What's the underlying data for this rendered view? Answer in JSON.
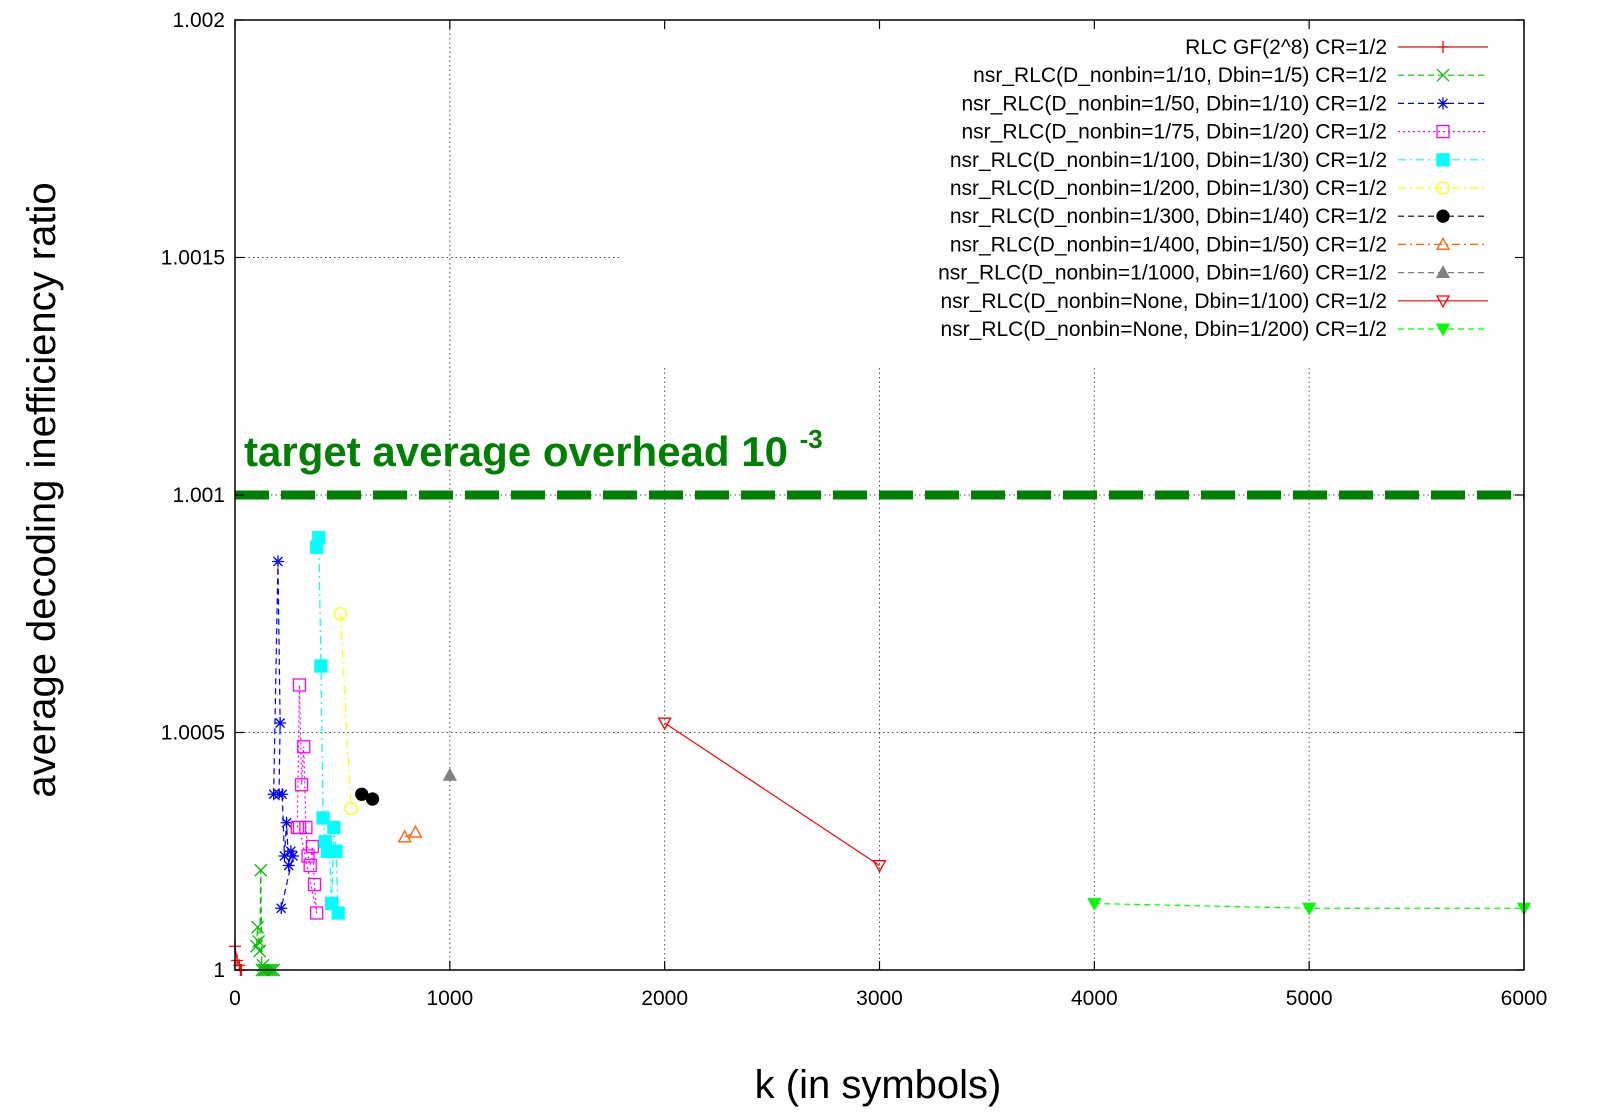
{
  "chart_data": {
    "type": "line",
    "title": "",
    "xlabel": "k (in symbols)",
    "ylabel": "average decoding inefficiency ratio",
    "xlim": [
      0,
      6000
    ],
    "ylim": [
      1,
      1.002
    ],
    "xticks": [
      0,
      1000,
      2000,
      3000,
      4000,
      5000,
      6000
    ],
    "yticks": [
      1,
      1.0005,
      1.001,
      1.0015,
      1.002
    ],
    "xtick_labels": [
      "0",
      "1000",
      "2000",
      "3000",
      "4000",
      "5000",
      "6000"
    ],
    "ytick_labels": [
      "1",
      "1.0005",
      "1.001",
      "1.0015",
      "1.002"
    ],
    "grid": true,
    "legend_position": "top-right",
    "target_line": {
      "y": 1.001,
      "color": "#008000",
      "label_main": "target average overhead 10",
      "label_sup": "-3"
    },
    "series": [
      {
        "name": "RLC GF(2^8) CR=1/2",
        "color": "#ff0000",
        "marker": "plus",
        "dash": "solid",
        "x": [
          0,
          10,
          20,
          25,
          30
        ],
        "y": [
          1.00005,
          1.00002,
          1.00001,
          1.0,
          1.0
        ]
      },
      {
        "name": "nsr_RLC(D_nonbin=1/10, Dbin=1/5) CR=1/2",
        "color": "#00c000",
        "marker": "x",
        "dash": "dashed",
        "x": [
          100,
          105,
          110,
          115,
          120,
          125,
          130,
          135,
          140,
          150,
          160,
          170,
          180
        ],
        "y": [
          1.00005,
          1.00009,
          1.00006,
          1.00004,
          1.00021,
          1.0,
          1.00001,
          1.0,
          1.0,
          1.0,
          1.0,
          1.0,
          1.0
        ]
      },
      {
        "name": "nsr_RLC(D_nonbin=1/50, Dbin=1/10) CR=1/2",
        "color": "#0000ff",
        "marker": "star",
        "dash": "dashed",
        "x": [
          180,
          200,
          210,
          205,
          220,
          230,
          240,
          250,
          260,
          270,
          215
        ],
        "y": [
          1.00037,
          1.00086,
          1.00052,
          1.00037,
          1.00037,
          1.00024,
          1.00031,
          1.00022,
          1.00025,
          1.00024,
          1.00013
        ]
      },
      {
        "name": "nsr_RLC(D_nonbin=1/75, Dbin=1/20) CR=1/2",
        "color": "#ff00ff",
        "marker": "square",
        "dash": "dotted",
        "x": [
          290,
          300,
          310,
          320,
          330,
          340,
          350,
          360,
          370,
          380,
          300
        ],
        "y": [
          1.0003,
          1.0006,
          1.00039,
          1.00047,
          1.0003,
          1.00024,
          1.00022,
          1.00026,
          1.00018,
          1.00012,
          1.0003
        ]
      },
      {
        "name": "nsr_RLC(D_nonbin=1/100, Dbin=1/30) CR=1/2",
        "color": "#00ffff",
        "marker": "filled-square",
        "dash": "dashdot",
        "x": [
          380,
          390,
          400,
          410,
          420,
          430,
          440,
          450,
          460,
          470,
          480
        ],
        "y": [
          1.00089,
          1.00091,
          1.00064,
          1.00032,
          1.00027,
          1.00025,
          1.00025,
          1.00014,
          1.0003,
          1.00025,
          1.00012
        ]
      },
      {
        "name": "nsr_RLC(D_nonbin=1/200, Dbin=1/30) CR=1/2",
        "color": "#ffff00",
        "marker": "circle",
        "dash": "dashdot",
        "x": [
          490,
          540
        ],
        "y": [
          1.00075,
          1.00034
        ]
      },
      {
        "name": "nsr_RLC(D_nonbin=1/300, Dbin=1/40) CR=1/2",
        "color": "#000000",
        "marker": "filled-circle",
        "dash": "dashed",
        "x": [
          590,
          640
        ],
        "y": [
          1.00037,
          1.00036
        ]
      },
      {
        "name": "nsr_RLC(D_nonbin=1/400, Dbin=1/50) CR=1/2",
        "color": "#ff6000",
        "marker": "triangle",
        "dash": "dashdot",
        "x": [
          790,
          840
        ],
        "y": [
          1.00028,
          1.00029
        ]
      },
      {
        "name": "nsr_RLC(D_nonbin=1/1000, Dbin=1/60) CR=1/2",
        "color": "#808080",
        "marker": "filled-triangle",
        "dash": "dashed",
        "x": [
          1000
        ],
        "y": [
          1.00041
        ]
      },
      {
        "name": "nsr_RLC(D_nonbin=None, Dbin=1/100) CR=1/2",
        "color": "#ff0000",
        "marker": "triangle-down",
        "dash": "solid",
        "x": [
          2000,
          3000
        ],
        "y": [
          1.00052,
          1.00022
        ]
      },
      {
        "name": "nsr_RLC(D_nonbin=None, Dbin=1/200) CR=1/2",
        "color": "#00ff00",
        "marker": "filled-triangle-down",
        "dash": "dashed",
        "x": [
          4000,
          5000,
          6000
        ],
        "y": [
          1.00014,
          1.00013,
          1.00013
        ]
      }
    ]
  }
}
